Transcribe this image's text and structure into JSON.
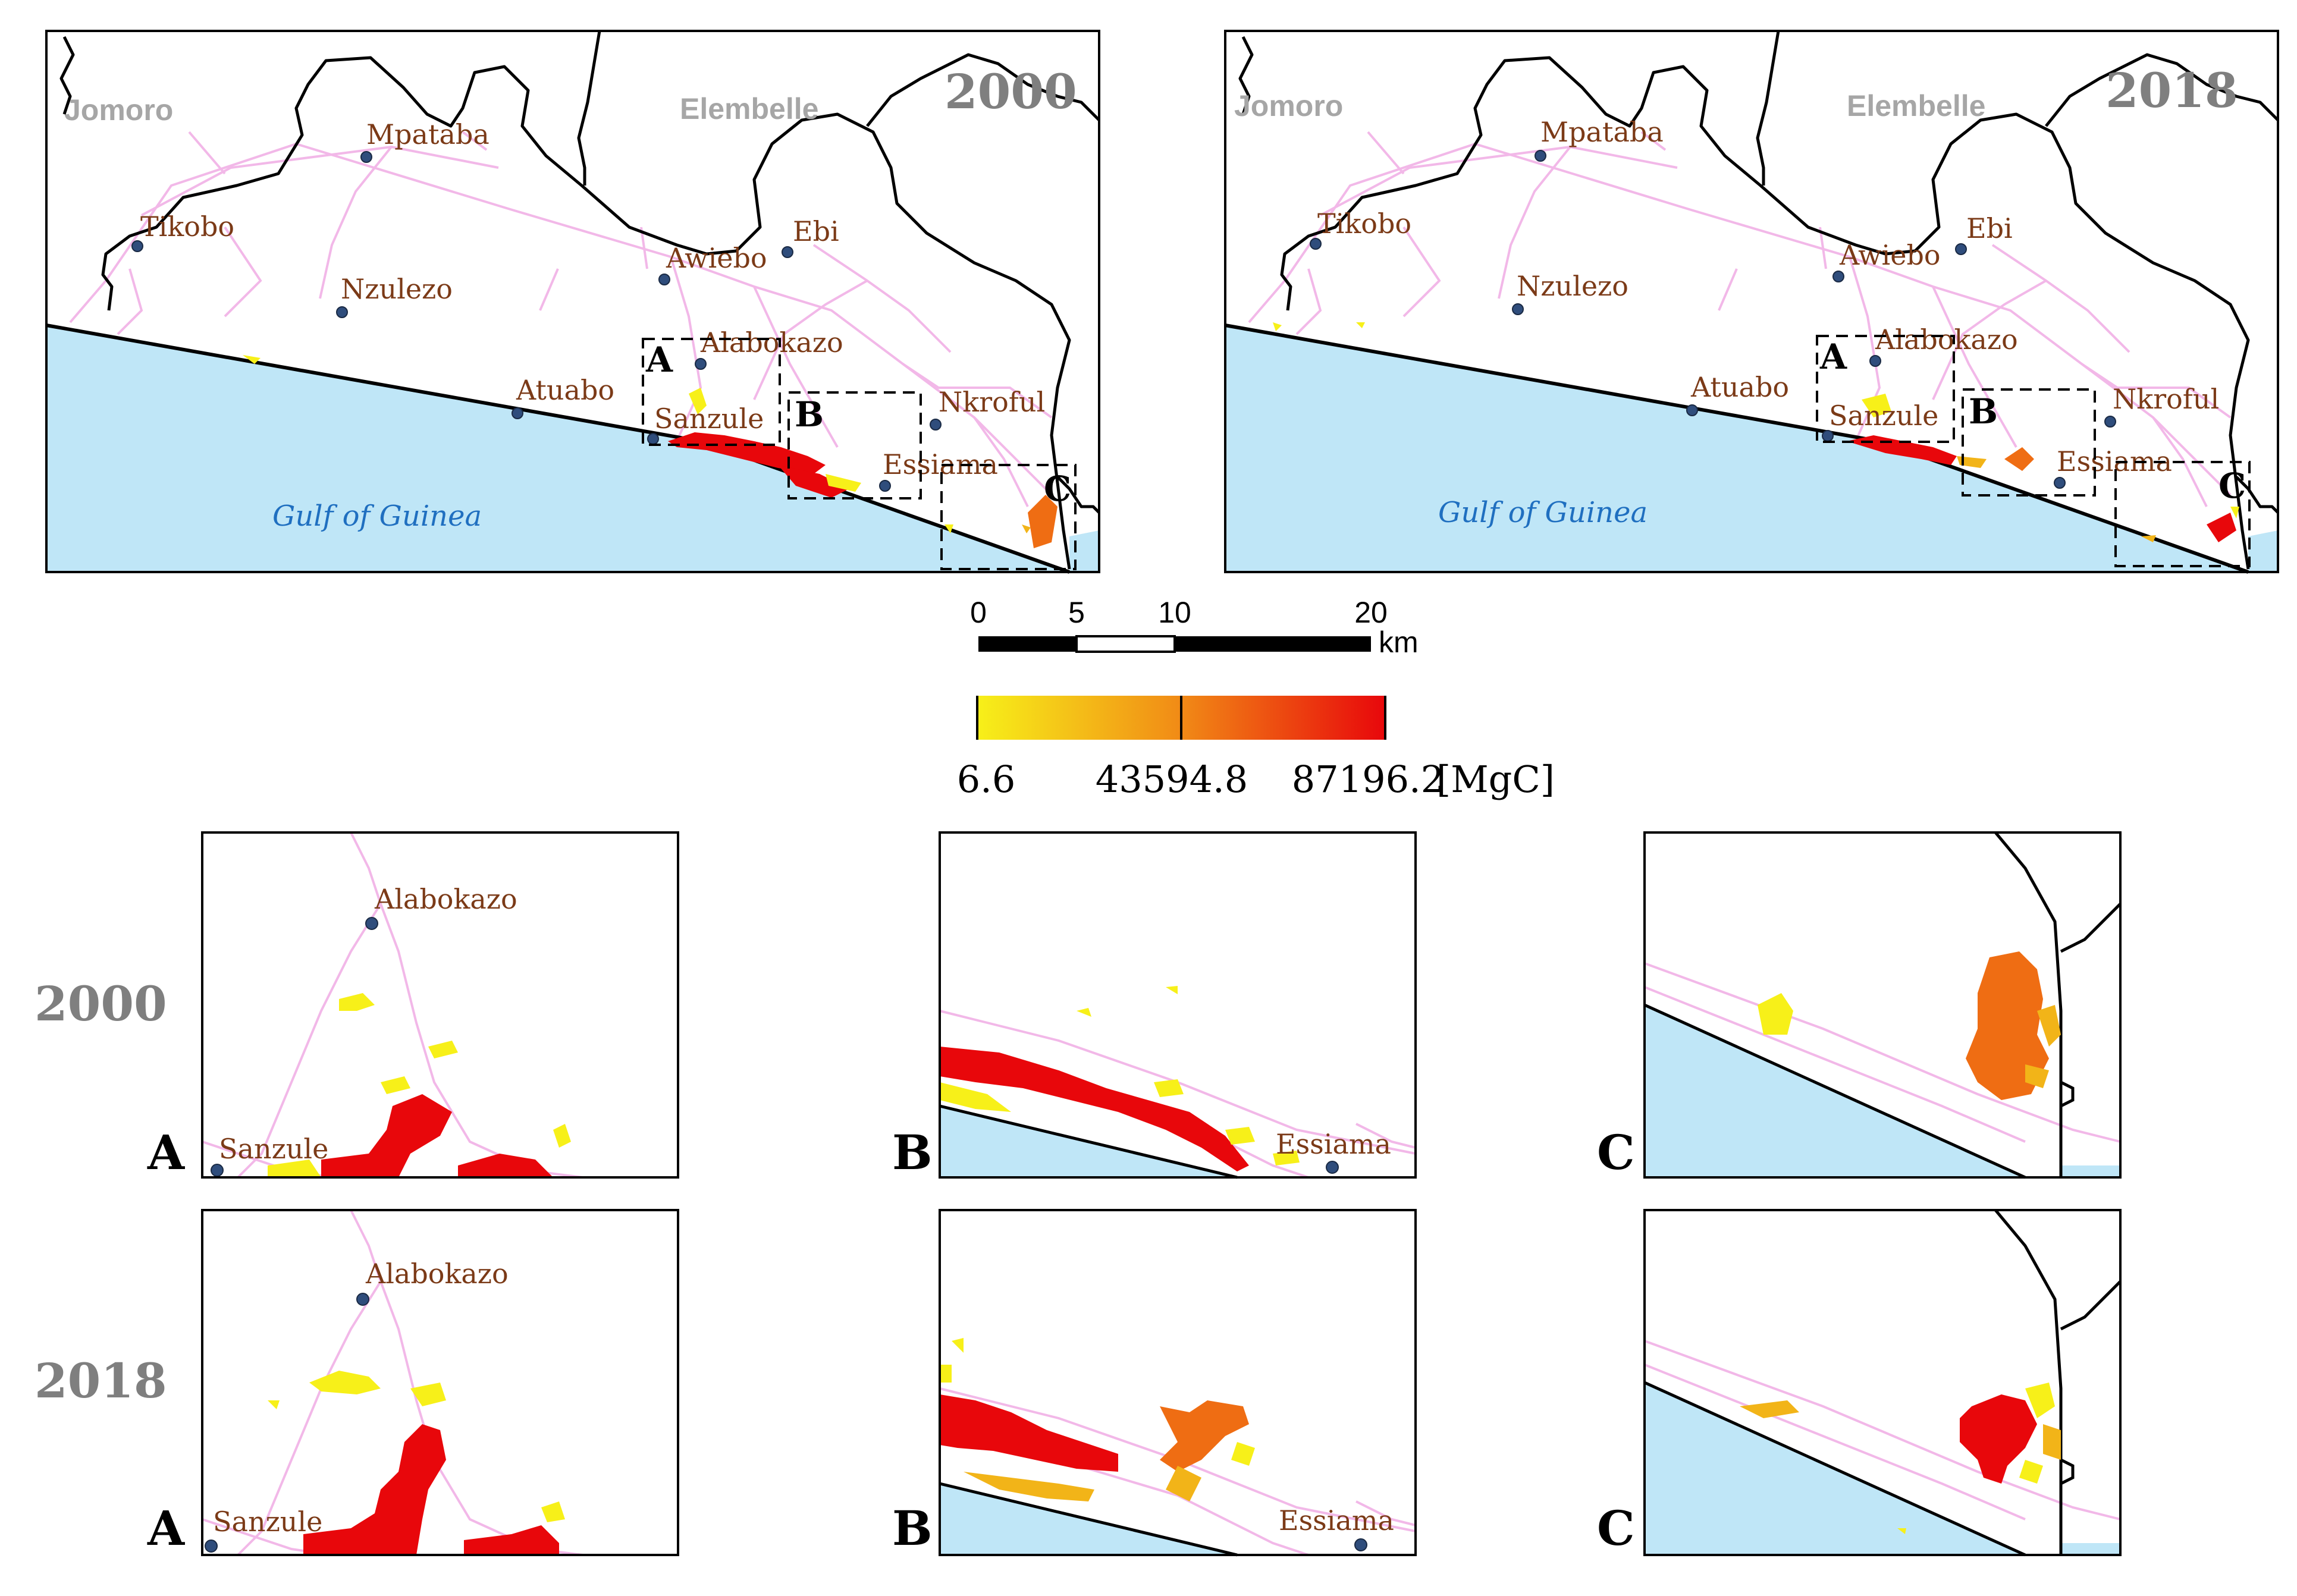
{
  "colors": {
    "sea": "#bfe6f7",
    "land": "#ffffff",
    "road": "#f2b8e8",
    "boundary": "#000000",
    "town_dot": "#2f4d7c",
    "yellow": "#f7f019",
    "gold": "#f2b418",
    "orange": "#ef6d13",
    "red": "#e8070b"
  },
  "maps": {
    "m2000": {
      "year": "2000",
      "districts": {
        "west": "Jomoro",
        "east": "Elembelle"
      },
      "sea_name": "Gulf of Guinea",
      "towns": {
        "mpataba": "Mpataba",
        "tikobo": "Tikobo",
        "nzulezo": "Nzulezo",
        "awiebo": "Awiebo",
        "ebi": "Ebi",
        "alabokazo": "Alabokazo",
        "atuabo": "Atuabo",
        "sanzule": "Sanzule",
        "nkroful": "Nkroful",
        "essiama": "Essiama"
      },
      "boxes": {
        "a": "A",
        "b": "B",
        "c": "C"
      }
    },
    "m2018": {
      "year": "2018",
      "districts": {
        "west": "Jomoro",
        "east": "Elembelle"
      },
      "sea_name": "Gulf of Guinea",
      "towns": {
        "mpataba": "Mpataba",
        "tikobo": "Tikobo",
        "nzulezo": "Nzulezo",
        "awiebo": "Awiebo",
        "ebi": "Ebi",
        "alabokazo": "Alabokazo",
        "atuabo": "Atuabo",
        "sanzule": "Sanzule",
        "nkroful": "Nkroful",
        "essiama": "Essiama"
      },
      "boxes": {
        "a": "A",
        "b": "B",
        "c": "C"
      }
    }
  },
  "scale_bar": {
    "ticks": [
      "0",
      "5",
      "10",
      "20"
    ],
    "unit": "km"
  },
  "legend": {
    "min": "6.6",
    "mid": "43594.8",
    "max": "87196.2",
    "unit": "[MgC]"
  },
  "insets": {
    "row_2000": {
      "year": "2000",
      "a": {
        "letter": "A",
        "north_town": "Alabokazo",
        "south_town": "Sanzule"
      },
      "b": {
        "letter": "B",
        "town": "Essiama"
      },
      "c": {
        "letter": "C"
      }
    },
    "row_2018": {
      "year": "2018",
      "a": {
        "letter": "A",
        "north_town": "Alabokazo",
        "south_town": "Sanzule"
      },
      "b": {
        "letter": "B",
        "town": "Essiama"
      },
      "c": {
        "letter": "C"
      }
    }
  }
}
